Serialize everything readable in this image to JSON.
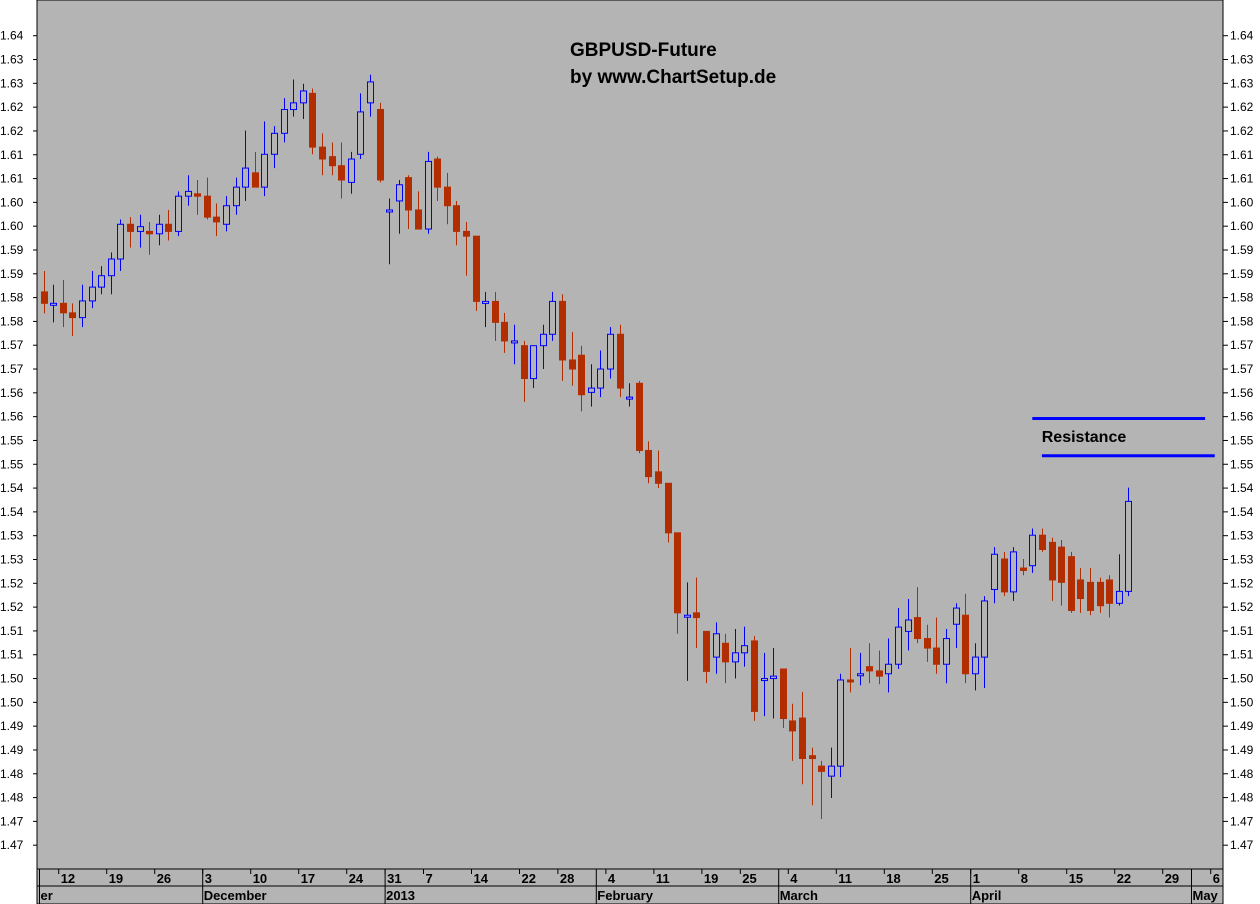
{
  "chart_data": {
    "type": "candlestick",
    "title": "GBPUSD-Future",
    "subtitle": "by www.ChartSetup.de",
    "ylim": [
      1.465,
      1.6475
    ],
    "y_ticks": [
      1.64,
      1.635,
      1.63,
      1.625,
      1.62,
      1.615,
      1.61,
      1.605,
      1.6,
      1.595,
      1.59,
      1.585,
      1.58,
      1.575,
      1.57,
      1.565,
      1.56,
      1.555,
      1.55,
      1.545,
      1.54,
      1.535,
      1.53,
      1.525,
      1.52,
      1.515,
      1.51,
      1.505,
      1.5,
      1.495,
      1.49,
      1.485,
      1.48,
      1.475,
      1.47
    ],
    "y_tick_labels": [
      "1.64",
      "1.63",
      "1.63",
      "1.62",
      "1.62",
      "1.61",
      "1.61",
      "1.60",
      "1.60",
      "1.59",
      "1.59",
      "1.58",
      "1.58",
      "1.57",
      "1.57",
      "1.56",
      "1.56",
      "1.55",
      "1.55",
      "1.54",
      "1.54",
      "1.53",
      "1.53",
      "1.52",
      "1.52",
      "1.51",
      "1.51",
      "1.50",
      "1.50",
      "1.49",
      "1.49",
      "1.48",
      "1.48",
      "1.47",
      "1.47"
    ],
    "grid": false,
    "colors": {
      "background": "#b4b4b4",
      "bull": "#0000ff",
      "bear": "#b22e00",
      "resistance": "#0000ff"
    },
    "x_day_labels": [
      {
        "label": "12",
        "index": 2
      },
      {
        "label": "19",
        "index": 7
      },
      {
        "label": "26",
        "index": 12
      },
      {
        "label": "3",
        "index": 17
      },
      {
        "label": "10",
        "index": 22
      },
      {
        "label": "17",
        "index": 27
      },
      {
        "label": "24",
        "index": 32
      },
      {
        "label": "31",
        "index": 36
      },
      {
        "label": "7",
        "index": 40
      },
      {
        "label": "14",
        "index": 45
      },
      {
        "label": "22",
        "index": 50
      },
      {
        "label": "28",
        "index": 54
      },
      {
        "label": "4",
        "index": 59
      },
      {
        "label": "11",
        "index": 64
      },
      {
        "label": "19",
        "index": 69
      },
      {
        "label": "25",
        "index": 73
      },
      {
        "label": "4",
        "index": 78
      },
      {
        "label": "11",
        "index": 83
      },
      {
        "label": "18",
        "index": 88
      },
      {
        "label": "25",
        "index": 93
      },
      {
        "label": "1",
        "index": 97
      },
      {
        "label": "8",
        "index": 102
      },
      {
        "label": "15",
        "index": 107
      },
      {
        "label": "22",
        "index": 112
      },
      {
        "label": "29",
        "index": 117
      },
      {
        "label": "6",
        "index": 122
      }
    ],
    "x_month_labels": [
      {
        "label": "er",
        "index": 0
      },
      {
        "label": "December",
        "index": 17
      },
      {
        "label": "2013",
        "index": 36
      },
      {
        "label": "February",
        "index": 58
      },
      {
        "label": "March",
        "index": 77
      },
      {
        "label": "April",
        "index": 97
      },
      {
        "label": "May",
        "index": 120
      }
    ],
    "annotations": {
      "resistance_label": "Resistance",
      "resistance_lines": [
        {
          "value": 1.5596,
          "start_index": 103,
          "end_index": 121
        },
        {
          "value": 1.5518,
          "start_index": 104,
          "end_index": 122
        }
      ]
    },
    "candles": [
      {
        "o": 1.5862,
        "h": 1.5906,
        "l": 1.5817,
        "c": 1.5838
      },
      {
        "o": 1.5838,
        "h": 1.5877,
        "l": 1.5798,
        "c": 1.5838
      },
      {
        "o": 1.5838,
        "h": 1.5887,
        "l": 1.5788,
        "c": 1.5818
      },
      {
        "o": 1.5818,
        "h": 1.5838,
        "l": 1.5769,
        "c": 1.5808
      },
      {
        "o": 1.5808,
        "h": 1.5877,
        "l": 1.5788,
        "c": 1.5843
      },
      {
        "o": 1.5843,
        "h": 1.5906,
        "l": 1.5828,
        "c": 1.5872
      },
      {
        "o": 1.5872,
        "h": 1.5916,
        "l": 1.5857,
        "c": 1.5896
      },
      {
        "o": 1.5896,
        "h": 1.5945,
        "l": 1.5857,
        "c": 1.5931
      },
      {
        "o": 1.5931,
        "h": 1.6014,
        "l": 1.5906,
        "c": 1.6004
      },
      {
        "o": 1.6004,
        "h": 1.6019,
        "l": 1.5955,
        "c": 1.5989
      },
      {
        "o": 1.5989,
        "h": 1.6024,
        "l": 1.5955,
        "c": 1.5999
      },
      {
        "o": 1.5989,
        "h": 1.6009,
        "l": 1.594,
        "c": 1.5984
      },
      {
        "o": 1.5984,
        "h": 1.6024,
        "l": 1.596,
        "c": 1.6004
      },
      {
        "o": 1.6004,
        "h": 1.6034,
        "l": 1.597,
        "c": 1.5989
      },
      {
        "o": 1.5989,
        "h": 1.6073,
        "l": 1.5979,
        "c": 1.6063
      },
      {
        "o": 1.6063,
        "h": 1.6107,
        "l": 1.6043,
        "c": 1.6073
      },
      {
        "o": 1.6068,
        "h": 1.6097,
        "l": 1.6024,
        "c": 1.6063
      },
      {
        "o": 1.6063,
        "h": 1.6102,
        "l": 1.6014,
        "c": 1.6019
      },
      {
        "o": 1.6019,
        "h": 1.6048,
        "l": 1.5979,
        "c": 1.6009
      },
      {
        "o": 1.6004,
        "h": 1.6063,
        "l": 1.5989,
        "c": 1.6043
      },
      {
        "o": 1.6043,
        "h": 1.6102,
        "l": 1.6024,
        "c": 1.6082
      },
      {
        "o": 1.6082,
        "h": 1.6201,
        "l": 1.6053,
        "c": 1.6122
      },
      {
        "o": 1.6112,
        "h": 1.6156,
        "l": 1.6082,
        "c": 1.6082
      },
      {
        "o": 1.6082,
        "h": 1.622,
        "l": 1.6063,
        "c": 1.6151
      },
      {
        "o": 1.6151,
        "h": 1.621,
        "l": 1.6122,
        "c": 1.6195
      },
      {
        "o": 1.6195,
        "h": 1.6269,
        "l": 1.6176,
        "c": 1.6245
      },
      {
        "o": 1.6245,
        "h": 1.6308,
        "l": 1.623,
        "c": 1.6259
      },
      {
        "o": 1.6259,
        "h": 1.6299,
        "l": 1.6225,
        "c": 1.6284
      },
      {
        "o": 1.6279,
        "h": 1.6289,
        "l": 1.6151,
        "c": 1.6166
      },
      {
        "o": 1.6166,
        "h": 1.6195,
        "l": 1.6107,
        "c": 1.6141
      },
      {
        "o": 1.6146,
        "h": 1.6176,
        "l": 1.6107,
        "c": 1.6127
      },
      {
        "o": 1.6127,
        "h": 1.6176,
        "l": 1.6058,
        "c": 1.6097
      },
      {
        "o": 1.6092,
        "h": 1.6156,
        "l": 1.6068,
        "c": 1.6141
      },
      {
        "o": 1.6151,
        "h": 1.6279,
        "l": 1.6141,
        "c": 1.624
      },
      {
        "o": 1.6259,
        "h": 1.6318,
        "l": 1.623,
        "c": 1.6303
      },
      {
        "o": 1.6245,
        "h": 1.6259,
        "l": 1.6092,
        "c": 1.6097
      },
      {
        "o": 1.6034,
        "h": 1.6058,
        "l": 1.592,
        "c": 1.6034
      },
      {
        "o": 1.6053,
        "h": 1.6097,
        "l": 1.5984,
        "c": 1.6087
      },
      {
        "o": 1.6102,
        "h": 1.6107,
        "l": 1.5994,
        "c": 1.6034
      },
      {
        "o": 1.6034,
        "h": 1.6073,
        "l": 1.5994,
        "c": 1.5994
      },
      {
        "o": 1.5994,
        "h": 1.6156,
        "l": 1.5984,
        "c": 1.6136
      },
      {
        "o": 1.6141,
        "h": 1.6146,
        "l": 1.6053,
        "c": 1.6082
      },
      {
        "o": 1.6082,
        "h": 1.6112,
        "l": 1.6004,
        "c": 1.6043
      },
      {
        "o": 1.6043,
        "h": 1.6053,
        "l": 1.596,
        "c": 1.5989
      },
      {
        "o": 1.5989,
        "h": 1.6009,
        "l": 1.5896,
        "c": 1.5979
      },
      {
        "o": 1.5979,
        "h": 1.5979,
        "l": 1.5822,
        "c": 1.5842
      },
      {
        "o": 1.5842,
        "h": 1.5862,
        "l": 1.5788,
        "c": 1.5842
      },
      {
        "o": 1.5842,
        "h": 1.5862,
        "l": 1.5759,
        "c": 1.5798
      },
      {
        "o": 1.5798,
        "h": 1.5818,
        "l": 1.5734,
        "c": 1.5759
      },
      {
        "o": 1.5759,
        "h": 1.5793,
        "l": 1.571,
        "c": 1.5759
      },
      {
        "o": 1.5749,
        "h": 1.5759,
        "l": 1.5631,
        "c": 1.568
      },
      {
        "o": 1.568,
        "h": 1.5749,
        "l": 1.566,
        "c": 1.5749
      },
      {
        "o": 1.5749,
        "h": 1.5793,
        "l": 1.57,
        "c": 1.5773
      },
      {
        "o": 1.5773,
        "h": 1.5862,
        "l": 1.5759,
        "c": 1.5842
      },
      {
        "o": 1.5842,
        "h": 1.5857,
        "l": 1.5675,
        "c": 1.5719
      },
      {
        "o": 1.5719,
        "h": 1.5778,
        "l": 1.5665,
        "c": 1.57
      },
      {
        "o": 1.5729,
        "h": 1.5749,
        "l": 1.5611,
        "c": 1.5646
      },
      {
        "o": 1.5651,
        "h": 1.571,
        "l": 1.5621,
        "c": 1.566
      },
      {
        "o": 1.566,
        "h": 1.5739,
        "l": 1.5641,
        "c": 1.57
      },
      {
        "o": 1.57,
        "h": 1.5788,
        "l": 1.568,
        "c": 1.5773
      },
      {
        "o": 1.5773,
        "h": 1.5793,
        "l": 1.5641,
        "c": 1.566
      },
      {
        "o": 1.5641,
        "h": 1.567,
        "l": 1.5621,
        "c": 1.5641
      },
      {
        "o": 1.567,
        "h": 1.5675,
        "l": 1.5523,
        "c": 1.5529
      },
      {
        "o": 1.5529,
        "h": 1.5548,
        "l": 1.546,
        "c": 1.5474
      },
      {
        "o": 1.5484,
        "h": 1.5529,
        "l": 1.545,
        "c": 1.546
      },
      {
        "o": 1.546,
        "h": 1.546,
        "l": 1.5336,
        "c": 1.5356
      },
      {
        "o": 1.5356,
        "h": 1.5356,
        "l": 1.5144,
        "c": 1.5188
      },
      {
        "o": 1.5183,
        "h": 1.5252,
        "l": 1.5045,
        "c": 1.5183
      },
      {
        "o": 1.5188,
        "h": 1.5262,
        "l": 1.5114,
        "c": 1.5178
      },
      {
        "o": 1.5149,
        "h": 1.5149,
        "l": 1.504,
        "c": 1.5065
      },
      {
        "o": 1.5095,
        "h": 1.5168,
        "l": 1.506,
        "c": 1.5144
      },
      {
        "o": 1.5124,
        "h": 1.5144,
        "l": 1.504,
        "c": 1.5085
      },
      {
        "o": 1.5085,
        "h": 1.5154,
        "l": 1.505,
        "c": 1.5104
      },
      {
        "o": 1.5104,
        "h": 1.5159,
        "l": 1.5075,
        "c": 1.5119
      },
      {
        "o": 1.5129,
        "h": 1.5139,
        "l": 1.4961,
        "c": 1.4981
      },
      {
        "o": 1.505,
        "h": 1.5104,
        "l": 1.4971,
        "c": 1.505
      },
      {
        "o": 1.505,
        "h": 1.5114,
        "l": 1.4966,
        "c": 1.5055
      },
      {
        "o": 1.507,
        "h": 1.507,
        "l": 1.4946,
        "c": 1.4966
      },
      {
        "o": 1.4961,
        "h": 1.4997,
        "l": 1.4877,
        "c": 1.494
      },
      {
        "o": 1.4967,
        "h": 1.5022,
        "l": 1.4828,
        "c": 1.4882
      },
      {
        "o": 1.4888,
        "h": 1.4905,
        "l": 1.4784,
        "c": 1.4882
      },
      {
        "o": 1.4866,
        "h": 1.4877,
        "l": 1.4755,
        "c": 1.4855
      },
      {
        "o": 1.4845,
        "h": 1.4905,
        "l": 1.4799,
        "c": 1.4866
      },
      {
        "o": 1.4866,
        "h": 1.506,
        "l": 1.4843,
        "c": 1.5047
      },
      {
        "o": 1.5047,
        "h": 1.5114,
        "l": 1.5021,
        "c": 1.5045
      },
      {
        "o": 1.506,
        "h": 1.5104,
        "l": 1.5036,
        "c": 1.506
      },
      {
        "o": 1.5075,
        "h": 1.5124,
        "l": 1.504,
        "c": 1.5066
      },
      {
        "o": 1.5066,
        "h": 1.5109,
        "l": 1.5038,
        "c": 1.5055
      },
      {
        "o": 1.506,
        "h": 1.5134,
        "l": 1.5021,
        "c": 1.508
      },
      {
        "o": 1.508,
        "h": 1.5198,
        "l": 1.507,
        "c": 1.5158
      },
      {
        "o": 1.5149,
        "h": 1.5217,
        "l": 1.5109,
        "c": 1.5173
      },
      {
        "o": 1.5178,
        "h": 1.5242,
        "l": 1.5124,
        "c": 1.5134
      },
      {
        "o": 1.5134,
        "h": 1.5163,
        "l": 1.5085,
        "c": 1.5114
      },
      {
        "o": 1.5114,
        "h": 1.5178,
        "l": 1.506,
        "c": 1.508
      },
      {
        "o": 1.508,
        "h": 1.5154,
        "l": 1.504,
        "c": 1.5134
      },
      {
        "o": 1.5164,
        "h": 1.5208,
        "l": 1.5114,
        "c": 1.5198
      },
      {
        "o": 1.5183,
        "h": 1.5228,
        "l": 1.504,
        "c": 1.506
      },
      {
        "o": 1.506,
        "h": 1.5124,
        "l": 1.5025,
        "c": 1.5095
      },
      {
        "o": 1.5095,
        "h": 1.5223,
        "l": 1.503,
        "c": 1.5213
      },
      {
        "o": 1.5237,
        "h": 1.5326,
        "l": 1.5208,
        "c": 1.5311
      },
      {
        "o": 1.5301,
        "h": 1.5316,
        "l": 1.5223,
        "c": 1.5232
      },
      {
        "o": 1.5232,
        "h": 1.5326,
        "l": 1.5213,
        "c": 1.5316
      },
      {
        "o": 1.5282,
        "h": 1.5301,
        "l": 1.5267,
        "c": 1.5277
      },
      {
        "o": 1.5287,
        "h": 1.5365,
        "l": 1.5272,
        "c": 1.5351
      },
      {
        "o": 1.5351,
        "h": 1.5365,
        "l": 1.5316,
        "c": 1.5321
      },
      {
        "o": 1.5336,
        "h": 1.5346,
        "l": 1.5213,
        "c": 1.5257
      },
      {
        "o": 1.5326,
        "h": 1.5341,
        "l": 1.5203,
        "c": 1.5252
      },
      {
        "o": 1.5306,
        "h": 1.5316,
        "l": 1.5188,
        "c": 1.5193
      },
      {
        "o": 1.5257,
        "h": 1.5282,
        "l": 1.5188,
        "c": 1.5218
      },
      {
        "o": 1.5252,
        "h": 1.5282,
        "l": 1.5183,
        "c": 1.5193
      },
      {
        "o": 1.5252,
        "h": 1.5262,
        "l": 1.5188,
        "c": 1.5203
      },
      {
        "o": 1.5257,
        "h": 1.5267,
        "l": 1.5178,
        "c": 1.5208
      },
      {
        "o": 1.5208,
        "h": 1.5311,
        "l": 1.5203,
        "c": 1.5233
      },
      {
        "o": 1.5233,
        "h": 1.5451,
        "l": 1.5223,
        "c": 1.5422
      }
    ]
  }
}
